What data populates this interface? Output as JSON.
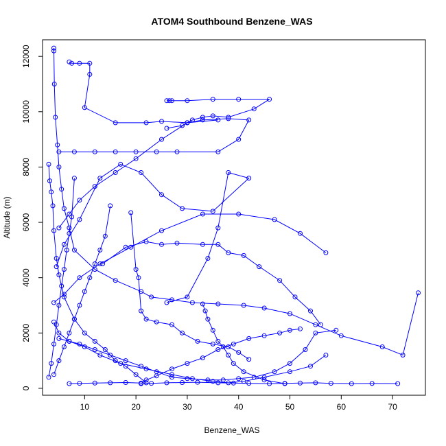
{
  "chart_data": {
    "type": "line",
    "title": "ATOM4 Southbound Benzene_WAS",
    "xlabel": "Benzene_WAS",
    "ylabel": "Altitude (m)",
    "xlim": [
      1.8,
      76.4
    ],
    "ylim": [
      -250,
      12600
    ],
    "x_ticks": [
      10,
      20,
      30,
      40,
      50,
      60,
      70
    ],
    "y_ticks": [
      0,
      2000,
      4000,
      6000,
      8000,
      10000,
      12000
    ],
    "grid": false,
    "legend": "none",
    "marker": "open-circle",
    "color": "#0000ff",
    "series": [
      {
        "x": [
          4,
          4,
          4.1,
          4.3,
          4.7,
          5,
          5.5,
          6,
          7,
          8,
          12,
          16,
          21,
          23,
          27,
          31,
          36,
          41,
          45,
          50,
          55,
          60,
          68,
          72,
          75
        ],
        "y": [
          12300,
          12200,
          11000,
          9800,
          8800,
          8000,
          7200,
          6500,
          5800,
          5000,
          4300,
          3900,
          3500,
          3300,
          3200,
          3100,
          3050,
          3000,
          2900,
          2700,
          2300,
          1900,
          1500,
          1200,
          3450
        ]
      },
      {
        "x": [
          3,
          3.2,
          3.5,
          3.8,
          4,
          4.5,
          5,
          6,
          8,
          10,
          12,
          14,
          16,
          18,
          20,
          22
        ],
        "y": [
          8100,
          7500,
          7100,
          6600,
          5700,
          4700,
          4100,
          3300,
          2500,
          2000,
          1700,
          1400,
          1000,
          800,
          500,
          200
        ]
      },
      {
        "x": [
          7,
          7.5,
          9,
          11,
          11,
          10,
          16,
          22,
          25,
          30,
          36
        ],
        "y": [
          11800,
          11750,
          11750,
          11750,
          11350,
          10150,
          9600,
          9600,
          9650,
          9600,
          9700
        ]
      },
      {
        "x": [
          26,
          26.5,
          27,
          30,
          35,
          40,
          46,
          43,
          38,
          35,
          33,
          31,
          30,
          29,
          26
        ],
        "y": [
          10400,
          10400,
          10400,
          10400,
          10450,
          10450,
          10450,
          10100,
          9800,
          9850,
          9800,
          9700,
          9600,
          9500,
          9400
        ]
      },
      {
        "x": [
          5,
          8,
          12,
          16,
          20,
          24,
          28,
          36,
          40,
          42,
          38,
          33,
          30,
          25,
          20,
          16,
          12,
          9,
          7,
          5
        ],
        "y": [
          8550,
          8550,
          8550,
          8550,
          8550,
          8550,
          8550,
          8550,
          9000,
          9700,
          9750,
          9700,
          9600,
          9000,
          8300,
          7800,
          7300,
          6800,
          6300,
          5800
        ]
      },
      {
        "x": [
          4.5,
          6,
          9,
          13,
          17,
          21,
          25,
          29,
          35,
          42,
          38,
          36,
          34,
          30,
          26
        ],
        "y": [
          4400,
          5200,
          6100,
          7600,
          8100,
          7800,
          7000,
          6500,
          6400,
          7600,
          7800,
          5800,
          4700,
          3300,
          3100
        ]
      },
      {
        "x": [
          4,
          6,
          9,
          13,
          19,
          25,
          33,
          40,
          47,
          52,
          57
        ],
        "y": [
          3100,
          3400,
          4000,
          4500,
          5100,
          5700,
          6300,
          6300,
          6100,
          5600,
          4900
        ]
      },
      {
        "x": [
          13.5,
          18,
          22,
          25,
          28,
          33,
          36,
          38,
          41,
          44,
          48,
          51,
          54,
          56
        ],
        "y": [
          4500,
          5100,
          5300,
          5200,
          5250,
          5200,
          5200,
          4900,
          4800,
          4400,
          3900,
          3300,
          2800,
          2300
        ]
      },
      {
        "x": [
          4,
          5,
          7,
          10,
          13,
          17,
          22,
          27,
          31,
          35,
          38,
          41,
          45,
          50,
          54,
          57
        ],
        "y": [
          2400,
          2000,
          1700,
          1500,
          1200,
          900,
          700,
          500,
          350,
          250,
          200,
          250,
          400,
          600,
          800,
          1200
        ]
      },
      {
        "x": [
          5,
          7,
          9,
          12,
          15,
          18,
          21,
          24,
          27,
          30,
          34,
          37,
          40,
          43,
          47,
          50,
          53,
          55,
          59
        ],
        "y": [
          1800,
          1700,
          1600,
          1400,
          1200,
          1000,
          800,
          600,
          400,
          350,
          300,
          300,
          350,
          400,
          600,
          900,
          1400,
          2000,
          2100
        ]
      },
      {
        "x": [
          7,
          9,
          12,
          15,
          18,
          21,
          23,
          26,
          29,
          32,
          36,
          39,
          42,
          46,
          49,
          52,
          55,
          58,
          62,
          66,
          71
        ],
        "y": [
          170,
          180,
          190,
          200,
          210,
          190,
          180,
          200,
          210,
          220,
          200,
          190,
          180,
          170,
          180,
          190,
          200,
          180,
          170,
          175,
          170
        ]
      },
      {
        "x": [
          19,
          20,
          20.5,
          21,
          22,
          24,
          27,
          29,
          32,
          35,
          38,
          40,
          42
        ],
        "y": [
          6350,
          4300,
          4000,
          2800,
          2500,
          2400,
          2300,
          2000,
          1700,
          1600,
          1500,
          1300,
          1050
        ]
      },
      {
        "x": [
          33,
          33.5,
          34,
          35,
          36,
          37,
          38,
          39,
          41,
          45,
          49
        ],
        "y": [
          3050,
          2800,
          2500,
          2100,
          1700,
          1500,
          1200,
          900,
          600,
          300,
          170
        ]
      },
      {
        "x": [
          21,
          22,
          24,
          27,
          30,
          33,
          36,
          39,
          42,
          45,
          48,
          50,
          52
        ],
        "y": [
          170,
          300,
          450,
          700,
          900,
          1100,
          1400,
          1600,
          1800,
          1900,
          2000,
          2100,
          2150
        ]
      },
      {
        "x": [
          4,
          5,
          6,
          7,
          8,
          9,
          10,
          11,
          12,
          13,
          14,
          15
        ],
        "y": [
          500,
          1000,
          1500,
          2000,
          2500,
          3000,
          3500,
          4000,
          4500,
          5000,
          5500,
          6600
        ]
      },
      {
        "x": [
          3,
          3.5,
          4,
          4.5,
          5,
          5.5,
          6,
          6.5,
          7,
          7.5,
          8
        ],
        "y": [
          400,
          900,
          1600,
          2300,
          3000,
          3700,
          4300,
          5000,
          5600,
          6200,
          7600
        ]
      }
    ]
  }
}
